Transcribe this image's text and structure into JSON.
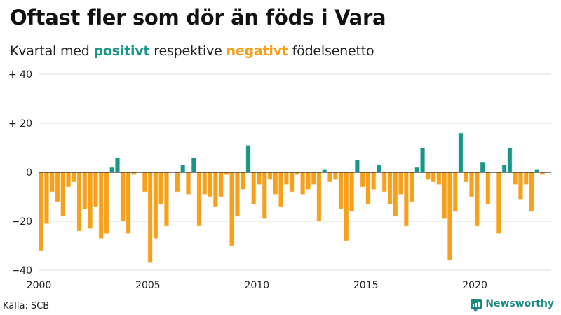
{
  "header": {
    "title": "Oftast fler som dör än föds i Vara",
    "subtitle_prefix": "Kvartal med ",
    "subtitle_positive": "positivt",
    "subtitle_middle": " respektive ",
    "subtitle_negative": "negativt",
    "subtitle_suffix": " födelsenetto"
  },
  "footer": {
    "source": "Källa: SCB",
    "brand": "Newsworthy"
  },
  "colors": {
    "positive": "#1a9688",
    "negative": "#f7a01b",
    "grid": "#e3e3e3",
    "zero_line": "#333333"
  },
  "chart_data": {
    "type": "bar",
    "title": "Oftast fler som dör än föds i Vara",
    "subtitle": "Kvartal med positivt respektive negativt födelsenetto",
    "xlabel": "",
    "ylabel": "",
    "start": "2000 Q1",
    "frequency": "quarterly",
    "x_ticks": [
      "2000",
      "2005",
      "2010",
      "2015",
      "2020"
    ],
    "y_ticks": [
      {
        "value": 40,
        "label": "+ 40"
      },
      {
        "value": 20,
        "label": "+ 20"
      },
      {
        "value": 0,
        "label": "0"
      },
      {
        "value": -20,
        "label": "−20"
      },
      {
        "value": -40,
        "label": "−40"
      }
    ],
    "ylim": [
      -40,
      40
    ],
    "grid": true,
    "legend": "none (colors explained in subtitle)",
    "values": [
      -32,
      -21,
      -8,
      -12,
      -18,
      -6,
      -4,
      -24,
      -15,
      -23,
      -14,
      -27,
      -25,
      2,
      6,
      -20,
      -25,
      -1,
      0,
      -8,
      -37,
      -27,
      -13,
      -22,
      0,
      -8,
      3,
      -9,
      6,
      -22,
      -9,
      -10,
      -14,
      -10,
      -1,
      -30,
      -18,
      -7,
      11,
      -13,
      -5,
      -19,
      -3,
      -9,
      -14,
      -5,
      -8,
      -1,
      -9,
      -7,
      -5,
      -20,
      1,
      -4,
      -3,
      -15,
      -28,
      -16,
      5,
      -6,
      -13,
      -7,
      3,
      -8,
      -13,
      -18,
      -9,
      -22,
      -12,
      2,
      10,
      -3,
      -4,
      -5,
      -19,
      -36,
      -16,
      16,
      -4,
      -10,
      -22,
      4,
      -13,
      0,
      -25,
      3,
      10,
      -5,
      -11,
      -5,
      -16,
      1,
      -1
    ]
  }
}
